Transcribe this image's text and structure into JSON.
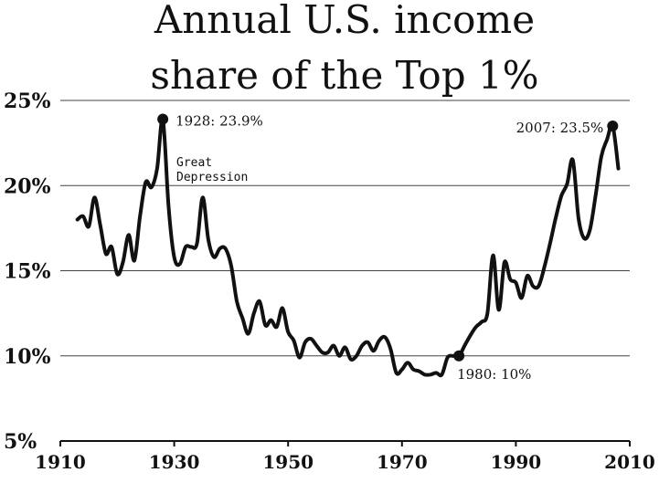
{
  "chart_data": {
    "type": "line",
    "title_lines": [
      "Annual U.S. income",
      "share of the Top 1%"
    ],
    "xlabel": "",
    "ylabel": "",
    "xlim": [
      1910,
      2010
    ],
    "ylim": [
      5,
      25
    ],
    "x_ticks": [
      1910,
      1930,
      1950,
      1970,
      1990,
      2010
    ],
    "y_ticks": [
      5,
      10,
      15,
      20,
      25
    ],
    "y_tick_labels": [
      "5%",
      "10%",
      "15%",
      "20%",
      "25%"
    ],
    "grid": "horizontal",
    "series": [
      {
        "x": [
          1913,
          1914,
          1915,
          1916,
          1917,
          1918,
          1919,
          1920,
          1921,
          1922,
          1923,
          1924,
          1925,
          1926,
          1927,
          1928,
          1929,
          1930,
          1931,
          1932,
          1933,
          1934,
          1935,
          1936,
          1937,
          1938,
          1939,
          1940,
          1941,
          1942,
          1943,
          1944,
          1945,
          1946,
          1947,
          1948,
          1949,
          1950,
          1951,
          1952,
          1953,
          1954,
          1955,
          1956,
          1957,
          1958,
          1959,
          1960,
          1961,
          1962,
          1963,
          1964,
          1965,
          1966,
          1967,
          1968,
          1969,
          1970,
          1971,
          1972,
          1973,
          1974,
          1975,
          1976,
          1977,
          1978,
          1979,
          1980,
          1981,
          1982,
          1983,
          1984,
          1985,
          1986,
          1987,
          1988,
          1989,
          1990,
          1991,
          1992,
          1993,
          1994,
          1995,
          1996,
          1997,
          1998,
          1999,
          2000,
          2001,
          2002,
          2003,
          2004,
          2005,
          2006,
          2007,
          2008
        ],
        "values": [
          18.0,
          18.2,
          17.6,
          19.3,
          17.7,
          16.0,
          16.4,
          14.8,
          15.5,
          17.1,
          15.6,
          18.2,
          20.2,
          19.9,
          21.0,
          23.9,
          18.8,
          15.8,
          15.4,
          16.4,
          16.4,
          16.6,
          19.3,
          16.8,
          15.8,
          16.3,
          16.3,
          15.3,
          13.2,
          12.2,
          11.3,
          12.5,
          13.2,
          11.8,
          12.1,
          11.7,
          12.8,
          11.4,
          10.9,
          9.9,
          10.8,
          11.0,
          10.6,
          10.2,
          10.2,
          10.6,
          10.0,
          10.5,
          9.8,
          10.0,
          10.6,
          10.8,
          10.3,
          10.9,
          11.1,
          10.4,
          9.0,
          9.2,
          9.6,
          9.2,
          9.1,
          8.9,
          8.9,
          9.0,
          8.9,
          9.9,
          10.0,
          10.0,
          10.6,
          11.2,
          11.7,
          12.0,
          12.5,
          15.9,
          12.7,
          15.5,
          14.5,
          14.3,
          13.4,
          14.7,
          14.1,
          14.1,
          15.2,
          16.6,
          18.1,
          19.4,
          20.1,
          21.5,
          18.1,
          16.9,
          17.4,
          19.4,
          21.7,
          22.7,
          23.5,
          21.0
        ]
      }
    ],
    "annotations": [
      {
        "x": 1928,
        "y": 23.9,
        "text": "1928: 23.9%"
      },
      {
        "x": 1980,
        "y": 10.0,
        "text": "1980: 10%"
      },
      {
        "x": 2007,
        "y": 23.5,
        "text": "2007: 23.5%"
      }
    ],
    "text_notes": [
      "Great",
      "Depression"
    ]
  }
}
